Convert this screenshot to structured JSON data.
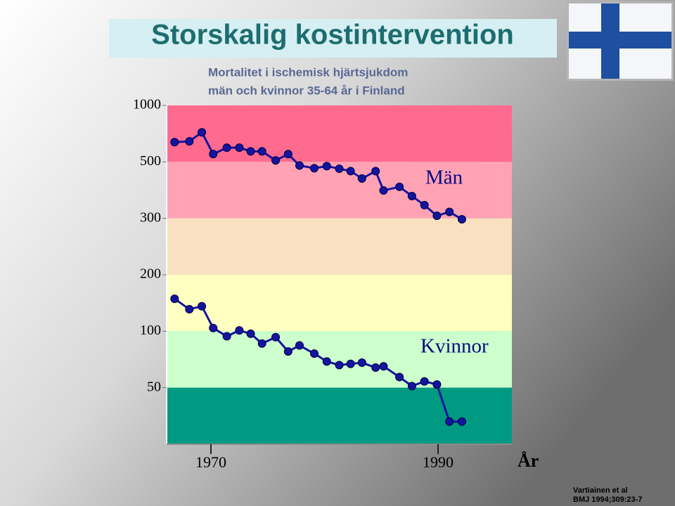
{
  "chart_data": {
    "type": "line",
    "title": "Storskalig kostintervention",
    "subtitle": [
      "Mortalitet i ischemisk hjärtsjukdom",
      "män och kvinnor 35-64 år i Finland"
    ],
    "xlabel": "År",
    "source": [
      "Vartiainen et al",
      "BMJ 1994;309:23-7"
    ],
    "x": [
      1966.8,
      1968.1,
      1969.2,
      1970.2,
      1971.4,
      1972.5,
      1973.5,
      1974.5,
      1975.7,
      1976.8,
      1977.8,
      1979.1,
      1980.2,
      1981.3,
      1982.3,
      1983.3,
      1984.5,
      1985.2,
      1986.6,
      1987.7,
      1988.8,
      1989.9,
      1991.0,
      1992.1
    ],
    "series": [
      {
        "name": "Män",
        "color": "#1414a0",
        "values": [
          637,
          643,
          719,
          550,
          595,
          595,
          569,
          569,
          509,
          550,
          484,
          472,
          481,
          470,
          460,
          430,
          460,
          386,
          399,
          367,
          338,
          307,
          318,
          298
        ]
      },
      {
        "name": "Kvinnor",
        "color": "#1414a0",
        "values": [
          149,
          131,
          136,
          104,
          94,
          101,
          97,
          86,
          93,
          78,
          84,
          76,
          69,
          66,
          67,
          68,
          64,
          65,
          57,
          51,
          54,
          52,
          33,
          33
        ]
      }
    ],
    "xlim": [
      1966.1,
      1996.5
    ],
    "xticks": [
      1970,
      1990
    ],
    "ylim": [
      25,
      1000
    ],
    "yticks": [
      1000,
      500,
      300,
      200,
      100,
      50
    ],
    "yscale": "tick-spaced-log",
    "bands": [
      {
        "from": 500,
        "to": 1000,
        "color": "#ff6b8f"
      },
      {
        "from": 300,
        "to": 500,
        "color": "#ffa3b4"
      },
      {
        "from": 200,
        "to": 300,
        "color": "#f8e0c0"
      },
      {
        "from": 100,
        "to": 200,
        "color": "#ffffc2"
      },
      {
        "from": 50,
        "to": 100,
        "color": "#ccffcc"
      },
      {
        "from": 25,
        "to": 50,
        "color": "#009a82"
      }
    ]
  }
}
